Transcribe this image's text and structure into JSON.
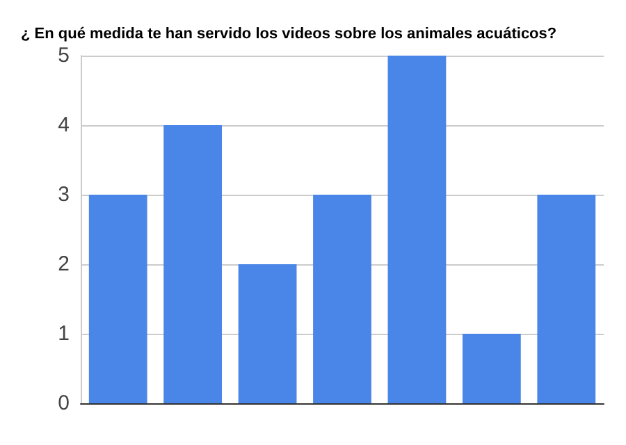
{
  "chart_data": {
    "type": "bar",
    "title": "¿ En qué medida te han servido los videos sobre los animales acuáticos?",
    "categories": [
      null,
      null,
      null,
      null,
      null,
      null,
      null
    ],
    "values": [
      3,
      4,
      2,
      3,
      5,
      1,
      3
    ],
    "color": "#4a86e8",
    "ylim": [
      0,
      5
    ],
    "yticks": [
      0,
      1,
      2,
      3,
      4,
      5
    ],
    "grid": "y"
  }
}
